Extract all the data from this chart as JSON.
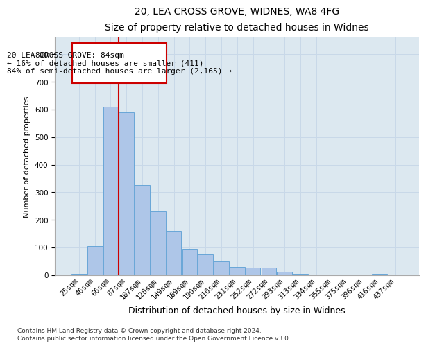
{
  "title1": "20, LEA CROSS GROVE, WIDNES, WA8 4FG",
  "title2": "Size of property relative to detached houses in Widnes",
  "xlabel": "Distribution of detached houses by size in Widnes",
  "ylabel": "Number of detached properties",
  "footnote": "Contains HM Land Registry data © Crown copyright and database right 2024.\nContains public sector information licensed under the Open Government Licence v3.0.",
  "bar_labels": [
    "25sqm",
    "46sqm",
    "66sqm",
    "87sqm",
    "107sqm",
    "128sqm",
    "149sqm",
    "169sqm",
    "190sqm",
    "210sqm",
    "231sqm",
    "252sqm",
    "272sqm",
    "293sqm",
    "313sqm",
    "334sqm",
    "355sqm",
    "375sqm",
    "396sqm",
    "416sqm",
    "437sqm"
  ],
  "bar_values": [
    5,
    105,
    610,
    590,
    325,
    230,
    160,
    95,
    75,
    50,
    30,
    28,
    26,
    13,
    5,
    0,
    0,
    0,
    0,
    5,
    0
  ],
  "bar_color": "#aec6e8",
  "bar_edge_color": "#5a9fd4",
  "vline_color": "#cc0000",
  "annotation_box_text": "20 LEA CROSS GROVE: 84sqm\n← 16% of detached houses are smaller (411)\n84% of semi-detached houses are larger (2,165) →",
  "box_edge_color": "#cc0000",
  "ylim": [
    0,
    860
  ],
  "yticks": [
    0,
    100,
    200,
    300,
    400,
    500,
    600,
    700,
    800
  ],
  "grid_color": "#c8d8e8",
  "background_color": "#dce8f0",
  "title1_fontsize": 10,
  "title2_fontsize": 9,
  "xlabel_fontsize": 9,
  "ylabel_fontsize": 8,
  "tick_fontsize": 7.5,
  "annotation_fontsize": 8,
  "footnote_fontsize": 6.5
}
